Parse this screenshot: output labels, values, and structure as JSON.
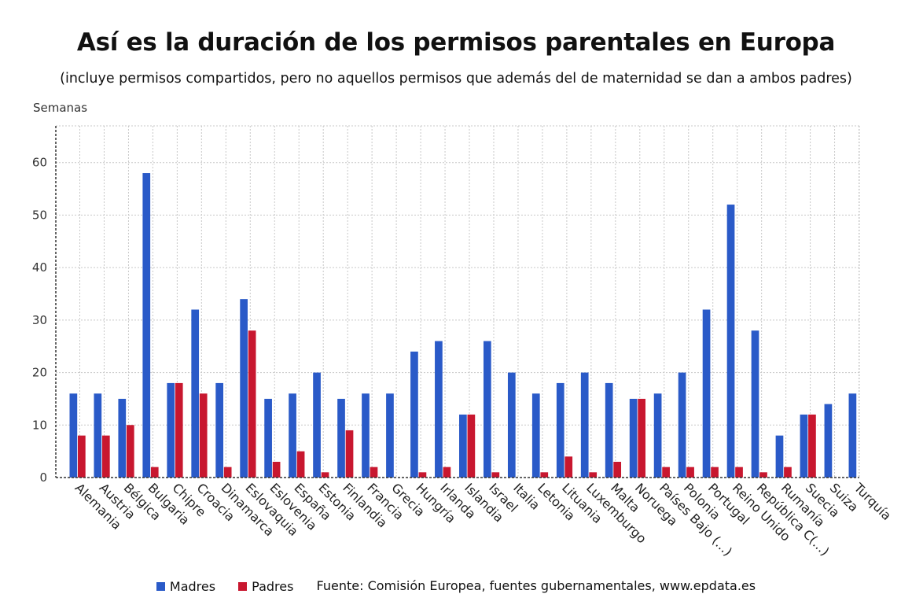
{
  "title": "Así es la duración de los permisos parentales en Europa",
  "subtitle": "(incluye permisos compartidos, pero no aquellos permisos que además del de maternidad se dan a ambos padres)",
  "source": "Fuente: Comisión Europea, fuentes gubernamentales, www.epdata.es",
  "colors": {
    "madres": "#2a5ac8",
    "padres": "#c8172f",
    "grid": "#c8c8c8",
    "axis": "#333333"
  },
  "chart_data": {
    "type": "bar",
    "ylabel": "Semanas",
    "ylim": [
      0,
      67
    ],
    "yticks": [
      0,
      10,
      20,
      30,
      40,
      50,
      60
    ],
    "grid": true,
    "legend_position": "bottom",
    "categories": [
      "Alemania",
      "Austria",
      "Bélgica",
      "Bulgaria",
      "Chipre",
      "Croacia",
      "Dinamarca",
      "Eslovaquia",
      "Eslovenia",
      "España",
      "Estonia",
      "Finlandia",
      "Francia",
      "Grecia",
      "Hungría",
      "Irlanda",
      "Islandia",
      "Israel",
      "Italia",
      "Letonia",
      "Lituania",
      "Luxemburgo",
      "Malta",
      "Noruega",
      "Países Bajo (...)",
      "Polonia",
      "Portugal",
      "Reino Unido",
      "República C(...)",
      "Rumanía",
      "Suecia",
      "Suiza",
      "Turquía"
    ],
    "series": [
      {
        "name": "Madres",
        "values": [
          16,
          16,
          15,
          58,
          18,
          32,
          18,
          34,
          15,
          16,
          20,
          15,
          16,
          16,
          24,
          26,
          12,
          26,
          20,
          16,
          18,
          20,
          18,
          15,
          16,
          20,
          32,
          52,
          28,
          8,
          12,
          14,
          16
        ]
      },
      {
        "name": "Padres",
        "values": [
          8,
          8,
          10,
          2,
          18,
          16,
          2,
          28,
          3,
          5,
          1,
          9,
          2,
          0,
          1,
          2,
          12,
          1,
          0,
          1,
          4,
          1,
          3,
          15,
          2,
          2,
          2,
          2,
          1,
          2,
          12,
          0,
          0
        ]
      }
    ]
  }
}
